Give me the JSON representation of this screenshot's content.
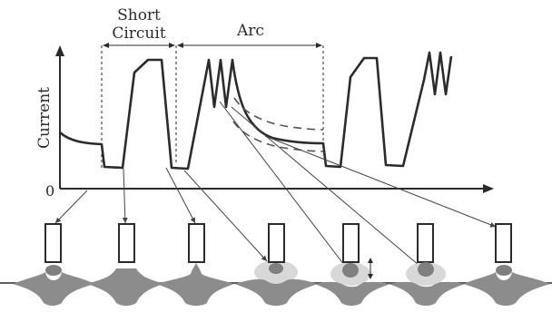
{
  "labels": {
    "short_circuit_line1": "Short",
    "short_circuit_line2": "Circuit",
    "arc": "Arc",
    "y_axis": "Current",
    "origin": "0"
  },
  "colors": {
    "ink": "#2b2b2b",
    "dashed": "#555555",
    "arrow": "#444444",
    "droplet": "#808080",
    "pool": "#8c8c8c",
    "halo": "#d8d8d8",
    "background": "#ffffff"
  },
  "phases": [
    "Short Circuit",
    "Arc"
  ],
  "stages": [
    {
      "index": 1,
      "droplet": "attached-small",
      "halo": false
    },
    {
      "index": 2,
      "droplet": "bridging",
      "halo": false
    },
    {
      "index": 3,
      "droplet": "necking",
      "halo": false
    },
    {
      "index": 4,
      "droplet": "detached",
      "halo": true
    },
    {
      "index": 5,
      "droplet": "growing-with-gap",
      "halo": true
    },
    {
      "index": 6,
      "droplet": "growing",
      "halo": true
    },
    {
      "index": 7,
      "droplet": "attached-small",
      "halo": false
    }
  ]
}
